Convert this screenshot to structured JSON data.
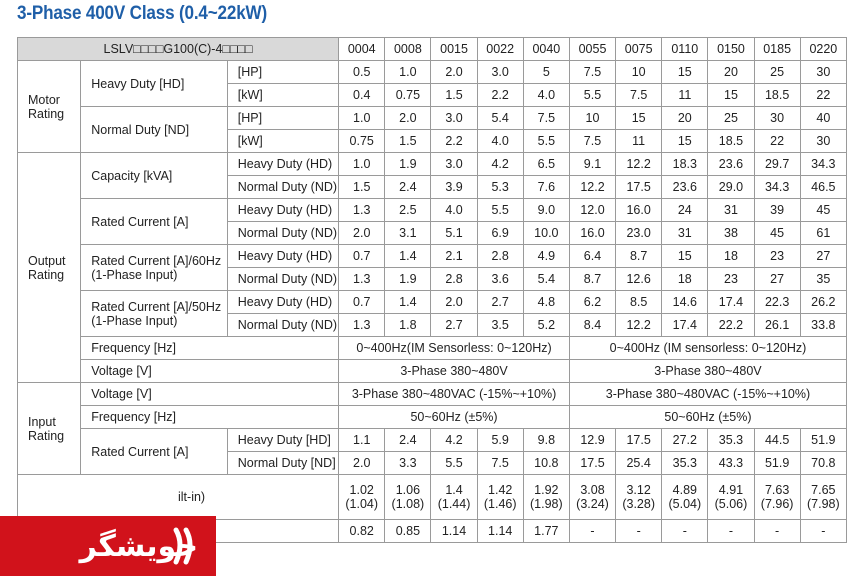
{
  "title": "3-Phase 400V Class (0.4~22kW)",
  "header": {
    "model": "LSLV□□□□G100(C)-4□□□□",
    "codes": [
      "0004",
      "0008",
      "0015",
      "0022",
      "0040",
      "0055",
      "0075",
      "0110",
      "0150",
      "0185",
      "0220"
    ]
  },
  "groups": {
    "motor": "Motor Rating",
    "output": "Output Rating",
    "input": "Input Rating"
  },
  "labels": {
    "heavy_duty_hd": "Heavy Duty [HD]",
    "normal_duty_nd": "Normal Duty [ND]",
    "hp": "[HP]",
    "kw": "[kW]",
    "capacity": "Capacity [kVA]",
    "heavy_duty_paren": "Heavy Duty (HD)",
    "normal_duty_paren": "Normal Duty (ND)",
    "rated_current": "Rated Current [A]",
    "rated_current_60_l1": "Rated Current [A]/60Hz",
    "rated_current_60_l2": "(1-Phase Input)",
    "rated_current_50_l1": "Rated Current [A]/50Hz",
    "rated_current_50_l2": "(1-Phase Input)",
    "frequency": "Frequency [Hz]",
    "voltage": "Voltage [V]",
    "heavy_duty_bracket": "Heavy Duty [HD]",
    "normal_duty_bracket": "Normal Duty [ND]",
    "partial_row": "ilt-in)"
  },
  "motor_hd_hp": [
    "0.5",
    "1.0",
    "2.0",
    "3.0",
    "5",
    "7.5",
    "10",
    "15",
    "20",
    "25",
    "30"
  ],
  "motor_hd_kw": [
    "0.4",
    "0.75",
    "1.5",
    "2.2",
    "4.0",
    "5.5",
    "7.5",
    "11",
    "15",
    "18.5",
    "22"
  ],
  "motor_nd_hp": [
    "1.0",
    "2.0",
    "3.0",
    "5.4",
    "7.5",
    "10",
    "15",
    "20",
    "25",
    "30",
    "40"
  ],
  "motor_nd_kw": [
    "0.75",
    "1.5",
    "2.2",
    "4.0",
    "5.5",
    "7.5",
    "11",
    "15",
    "18.5",
    "22",
    "30"
  ],
  "cap_hd": [
    "1.0",
    "1.9",
    "3.0",
    "4.2",
    "6.5",
    "9.1",
    "12.2",
    "18.3",
    "23.6",
    "29.7",
    "34.3"
  ],
  "cap_nd": [
    "1.5",
    "2.4",
    "3.9",
    "5.3",
    "7.6",
    "12.2",
    "17.5",
    "23.6",
    "29.0",
    "34.3",
    "46.5"
  ],
  "rc_hd": [
    "1.3",
    "2.5",
    "4.0",
    "5.5",
    "9.0",
    "12.0",
    "16.0",
    "24",
    "31",
    "39",
    "45"
  ],
  "rc_nd": [
    "2.0",
    "3.1",
    "5.1",
    "6.9",
    "10.0",
    "16.0",
    "23.0",
    "31",
    "38",
    "45",
    "61"
  ],
  "rc60_hd": [
    "0.7",
    "1.4",
    "2.1",
    "2.8",
    "4.9",
    "6.4",
    "8.7",
    "15",
    "18",
    "23",
    "27"
  ],
  "rc60_nd": [
    "1.3",
    "1.9",
    "2.8",
    "3.6",
    "5.4",
    "8.7",
    "12.6",
    "18",
    "23",
    "27",
    "35"
  ],
  "rc50_hd": [
    "0.7",
    "1.4",
    "2.0",
    "2.7",
    "4.8",
    "6.2",
    "8.5",
    "14.6",
    "17.4",
    "22.3",
    "26.2"
  ],
  "rc50_nd": [
    "1.3",
    "1.8",
    "2.7",
    "3.5",
    "5.2",
    "8.4",
    "12.2",
    "17.4",
    "22.2",
    "26.1",
    "33.8"
  ],
  "out_freq": [
    "0~400Hz(IM Sensorless: 0~120Hz)",
    "0~400Hz (IM sensorless: 0~120Hz)"
  ],
  "out_volt": [
    "3-Phase 380~480V",
    "3-Phase 380~480V"
  ],
  "in_volt": [
    "3-Phase 380~480VAC (-15%~+10%)",
    "3-Phase 380~480VAC (-15%~+10%)"
  ],
  "in_freq": [
    "50~60Hz (±5%)",
    "50~60Hz (±5%)"
  ],
  "in_rc_hd": [
    "1.1",
    "2.4",
    "4.2",
    "5.9",
    "9.8",
    "12.9",
    "17.5",
    "27.2",
    "35.3",
    "44.5",
    "51.9"
  ],
  "in_rc_nd": [
    "2.0",
    "3.3",
    "5.5",
    "7.5",
    "10.8",
    "17.5",
    "25.4",
    "35.3",
    "43.3",
    "51.9",
    "70.8"
  ],
  "weight_main": [
    "1.02",
    "1.06",
    "1.4",
    "1.42",
    "1.92",
    "3.08",
    "3.12",
    "4.89",
    "4.91",
    "7.63",
    "7.65"
  ],
  "weight_paren": [
    "(1.04)",
    "(1.08)",
    "(1.44)",
    "(1.46)",
    "(1.98)",
    "(3.24)",
    "(3.28)",
    "(5.04)",
    "(5.06)",
    "(7.96)",
    "(7.98)"
  ],
  "last_row": [
    "0.82",
    "0.85",
    "1.14",
    "1.14",
    "1.77",
    "-",
    "-",
    "-",
    "-",
    "-",
    "-"
  ],
  "logo": {
    "text": "جویشگر",
    "color": "#d1121b"
  }
}
